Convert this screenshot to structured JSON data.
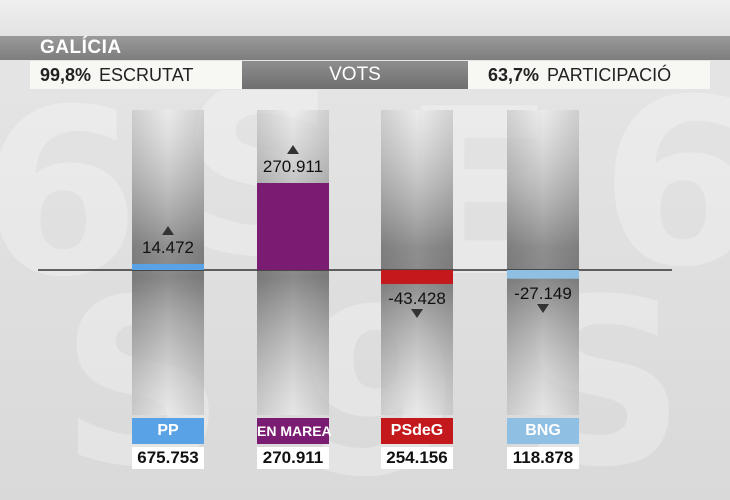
{
  "header": {
    "region": "GALÍCIA",
    "scrutiny_value": "99,8%",
    "scrutiny_label": "ESCRUTAT",
    "center_label": "VOTS",
    "turnout_value": "63,7%",
    "turnout_label": "PARTICIPACIÓ"
  },
  "chart_data": {
    "type": "bar",
    "title": "",
    "categories": [
      "PP",
      "EN MAREA",
      "PSdeG",
      "BNG"
    ],
    "series": [
      {
        "values": [
          14472,
          270911,
          -43428,
          -27149
        ]
      }
    ],
    "change_labels": [
      "14.472",
      "270.911",
      "-43.428",
      "-27.149"
    ],
    "totals": [
      "675.753",
      "270.911",
      "254.156",
      "118.878"
    ],
    "colors": [
      "#5aa2e6",
      "#7a1d72",
      "#c4191c",
      "#8fbfe3"
    ],
    "ylim": [
      -100000,
      300000
    ]
  }
}
